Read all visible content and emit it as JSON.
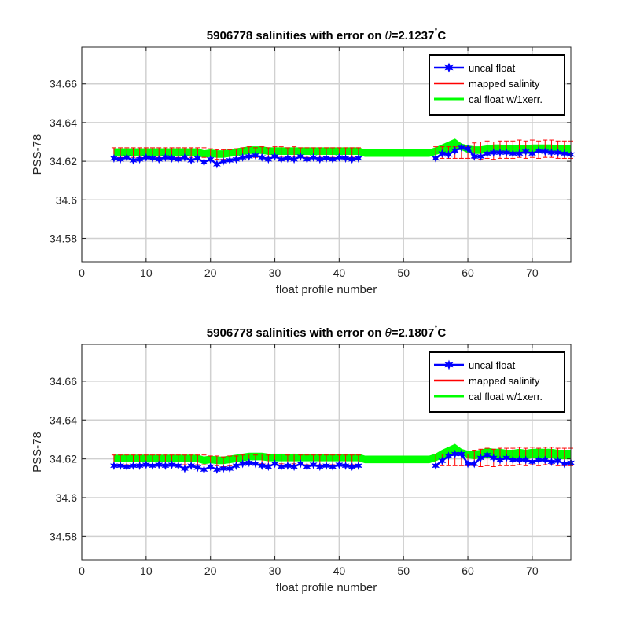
{
  "chart_data": [
    {
      "type": "line",
      "title_prefix": "5906778 salinities with error on ",
      "title_symbol": "θ",
      "title_value": "=2.1237",
      "title_degree": "°",
      "title_unit": "C",
      "xlabel": "float profile number",
      "ylabel": "PSS-78",
      "xlim": [
        0,
        76
      ],
      "ylim": [
        34.568,
        34.679
      ],
      "xticks": [
        0,
        10,
        20,
        30,
        40,
        50,
        60,
        70
      ],
      "yticks": [
        34.58,
        34.6,
        34.62,
        34.64,
        34.66
      ],
      "ytick_labels": [
        "34.58",
        "34.6",
        "34.62",
        "34.64",
        "34.66"
      ],
      "grid": true,
      "legend_position": "top-right",
      "legend": [
        "uncal float",
        "mapped salinity",
        "cal float w/1xerr."
      ],
      "colors": {
        "uncal": "#0000ff",
        "mapped": "#ff0000",
        "cal": "#00ff00"
      },
      "x": [
        5,
        6,
        7,
        8,
        9,
        10,
        11,
        12,
        13,
        14,
        15,
        16,
        17,
        18,
        19,
        20,
        21,
        22,
        23,
        24,
        25,
        26,
        27,
        28,
        29,
        30,
        31,
        32,
        33,
        34,
        35,
        36,
        37,
        38,
        39,
        40,
        41,
        42,
        43,
        55,
        56,
        57,
        58,
        59,
        60,
        61,
        62,
        63,
        64,
        65,
        66,
        67,
        68,
        69,
        70,
        71,
        72,
        73,
        74,
        75,
        76
      ],
      "series": [
        {
          "name": "uncal float",
          "values": [
            34.6215,
            34.621,
            34.622,
            34.6205,
            34.621,
            34.622,
            34.6215,
            34.621,
            34.622,
            34.6215,
            34.621,
            34.622,
            34.6205,
            34.6215,
            34.6195,
            34.621,
            34.6185,
            34.62,
            34.6205,
            34.621,
            34.622,
            34.6225,
            34.623,
            34.622,
            34.621,
            34.6225,
            34.621,
            34.6215,
            34.621,
            34.6225,
            34.621,
            34.622,
            34.621,
            34.6215,
            34.621,
            34.622,
            34.6215,
            34.621,
            34.6215,
            34.6215,
            34.624,
            34.6235,
            34.6255,
            34.627,
            34.6265,
            34.6225,
            34.6225,
            34.624,
            34.6245,
            34.6245,
            34.6245,
            34.624,
            34.624,
            34.625,
            34.624,
            34.6255,
            34.625,
            34.6245,
            34.6245,
            34.624,
            34.6235
          ]
        },
        {
          "name": "mapped salinity",
          "values": [
            34.6245,
            34.6245,
            34.6245,
            34.6245,
            34.6245,
            34.6245,
            34.6245,
            34.6245,
            34.6245,
            34.6245,
            34.6245,
            34.6245,
            34.6245,
            34.6245,
            34.6245,
            34.624,
            34.6235,
            34.6235,
            34.6235,
            34.624,
            34.6245,
            34.625,
            34.6245,
            34.625,
            34.6245,
            34.625,
            34.625,
            34.6245,
            34.625,
            34.6245,
            34.6245,
            34.6245,
            34.6245,
            34.6245,
            34.6245,
            34.6245,
            34.6245,
            34.6245,
            34.6245,
            34.6245,
            34.6245,
            34.6245,
            34.6245,
            34.6245,
            34.6245,
            34.6255,
            34.6255,
            34.626,
            34.6255,
            34.626,
            34.626,
            34.626,
            34.6265,
            34.626,
            34.6265,
            34.626,
            34.6265,
            34.6265,
            34.626,
            34.626,
            34.626
          ],
          "errors": [
            0.0025,
            0.0025,
            0.0025,
            0.0025,
            0.0025,
            0.0025,
            0.0025,
            0.0025,
            0.0025,
            0.0025,
            0.0025,
            0.0025,
            0.0025,
            0.0025,
            0.0025,
            0.0025,
            0.0025,
            0.0025,
            0.0025,
            0.0025,
            0.0025,
            0.0025,
            0.0025,
            0.0025,
            0.0025,
            0.0025,
            0.0025,
            0.0025,
            0.0025,
            0.0025,
            0.0025,
            0.0025,
            0.0025,
            0.0025,
            0.0025,
            0.0025,
            0.0025,
            0.0025,
            0.0025,
            0.003,
            0.003,
            0.003,
            0.003,
            0.003,
            0.003,
            0.004,
            0.0045,
            0.0045,
            0.0045,
            0.0045,
            0.0045,
            0.0045,
            0.0045,
            0.0045,
            0.0045,
            0.0045,
            0.0045,
            0.0045,
            0.0045,
            0.0045,
            0.0045
          ]
        },
        {
          "name": "cal float w/1xerr.",
          "x": [
            5,
            6,
            7,
            8,
            9,
            10,
            11,
            12,
            13,
            14,
            15,
            16,
            17,
            18,
            19,
            20,
            21,
            22,
            23,
            24,
            25,
            26,
            27,
            28,
            29,
            30,
            31,
            32,
            33,
            34,
            35,
            36,
            37,
            38,
            39,
            40,
            41,
            42,
            43,
            44,
            45,
            46,
            47,
            48,
            49,
            50,
            51,
            52,
            53,
            54,
            55,
            56,
            57,
            58,
            59,
            60,
            61,
            62,
            63,
            64,
            65,
            66,
            67,
            68,
            69,
            70,
            71,
            72,
            73,
            74,
            75,
            76
          ],
          "lower": [
            34.623,
            34.623,
            34.623,
            34.623,
            34.623,
            34.623,
            34.623,
            34.623,
            34.623,
            34.623,
            34.623,
            34.623,
            34.623,
            34.623,
            34.622,
            34.6225,
            34.622,
            34.622,
            34.6225,
            34.623,
            34.6235,
            34.624,
            34.624,
            34.624,
            34.6235,
            34.6235,
            34.6235,
            34.6235,
            34.6235,
            34.6235,
            34.6235,
            34.6235,
            34.6235,
            34.6235,
            34.6235,
            34.6235,
            34.6235,
            34.6235,
            34.6235,
            34.6225,
            34.6225,
            34.6225,
            34.6225,
            34.6225,
            34.6225,
            34.6225,
            34.6225,
            34.6225,
            34.6225,
            34.6225,
            34.6235,
            34.6245,
            34.6245,
            34.626,
            34.626,
            34.6245,
            34.624,
            34.624,
            34.6245,
            34.6245,
            34.6245,
            34.624,
            34.624,
            34.6245,
            34.624,
            34.6245,
            34.6245,
            34.6245,
            34.6245,
            34.624,
            34.624,
            34.624
          ],
          "upper": [
            34.6265,
            34.6265,
            34.6265,
            34.6265,
            34.6265,
            34.6265,
            34.6265,
            34.6265,
            34.6265,
            34.6265,
            34.6265,
            34.6265,
            34.6265,
            34.6265,
            34.6255,
            34.626,
            34.6255,
            34.6255,
            34.626,
            34.6265,
            34.627,
            34.6275,
            34.6275,
            34.6275,
            34.627,
            34.627,
            34.627,
            34.627,
            34.627,
            34.627,
            34.627,
            34.627,
            34.627,
            34.627,
            34.627,
            34.627,
            34.627,
            34.627,
            34.627,
            34.626,
            34.626,
            34.626,
            34.626,
            34.626,
            34.626,
            34.626,
            34.626,
            34.626,
            34.626,
            34.626,
            34.627,
            34.6285,
            34.63,
            34.6315,
            34.629,
            34.628,
            34.6275,
            34.6275,
            34.628,
            34.6285,
            34.6285,
            34.628,
            34.628,
            34.6285,
            34.628,
            34.6285,
            34.6285,
            34.6285,
            34.6285,
            34.628,
            34.628,
            34.628
          ]
        }
      ]
    },
    {
      "type": "line",
      "title_prefix": "5906778 salinities with error on ",
      "title_symbol": "θ",
      "title_value": "=2.1807",
      "title_degree": "°",
      "title_unit": "C",
      "xlabel": "float profile number",
      "ylabel": "PSS-78",
      "xlim": [
        0,
        76
      ],
      "ylim": [
        34.568,
        34.679
      ],
      "xticks": [
        0,
        10,
        20,
        30,
        40,
        50,
        60,
        70
      ],
      "yticks": [
        34.58,
        34.6,
        34.62,
        34.64,
        34.66
      ],
      "ytick_labels": [
        "34.58",
        "34.6",
        "34.62",
        "34.64",
        "34.66"
      ],
      "grid": true,
      "legend_position": "top-right",
      "legend": [
        "uncal float",
        "mapped salinity",
        "cal float w/1xerr."
      ],
      "colors": {
        "uncal": "#0000ff",
        "mapped": "#ff0000",
        "cal": "#00ff00"
      },
      "x": [
        5,
        6,
        7,
        8,
        9,
        10,
        11,
        12,
        13,
        14,
        15,
        16,
        17,
        18,
        19,
        20,
        21,
        22,
        23,
        24,
        25,
        26,
        27,
        28,
        29,
        30,
        31,
        32,
        33,
        34,
        35,
        36,
        37,
        38,
        39,
        40,
        41,
        42,
        43,
        55,
        56,
        57,
        58,
        59,
        60,
        61,
        62,
        63,
        64,
        65,
        66,
        67,
        68,
        69,
        70,
        71,
        72,
        73,
        74,
        75,
        76
      ],
      "series": [
        {
          "name": "uncal float",
          "values": [
            34.6165,
            34.6165,
            34.616,
            34.6165,
            34.6165,
            34.617,
            34.6165,
            34.617,
            34.6165,
            34.617,
            34.6165,
            34.615,
            34.6165,
            34.6155,
            34.6145,
            34.616,
            34.6145,
            34.615,
            34.615,
            34.6165,
            34.6175,
            34.618,
            34.6175,
            34.6165,
            34.616,
            34.6175,
            34.616,
            34.6165,
            34.616,
            34.6175,
            34.616,
            34.617,
            34.616,
            34.6165,
            34.616,
            34.617,
            34.6165,
            34.616,
            34.6165,
            34.6165,
            34.619,
            34.6215,
            34.6225,
            34.6225,
            34.6175,
            34.6175,
            34.6205,
            34.622,
            34.6205,
            34.6195,
            34.6205,
            34.6195,
            34.6195,
            34.6195,
            34.6185,
            34.6195,
            34.6195,
            34.6185,
            34.619,
            34.6175,
            34.618
          ]
        },
        {
          "name": "mapped salinity",
          "values": [
            34.6195,
            34.6195,
            34.6195,
            34.6195,
            34.6195,
            34.6195,
            34.6195,
            34.6195,
            34.6195,
            34.6195,
            34.6195,
            34.6195,
            34.6195,
            34.6195,
            34.6195,
            34.619,
            34.619,
            34.6185,
            34.619,
            34.619,
            34.6195,
            34.62,
            34.6195,
            34.62,
            34.6195,
            34.62,
            34.62,
            34.6195,
            34.62,
            34.6195,
            34.6195,
            34.6195,
            34.6195,
            34.6195,
            34.6195,
            34.6195,
            34.6195,
            34.6195,
            34.6195,
            34.6195,
            34.6195,
            34.6195,
            34.6195,
            34.6195,
            34.6195,
            34.6205,
            34.6205,
            34.621,
            34.6205,
            34.621,
            34.621,
            34.621,
            34.6215,
            34.621,
            34.6215,
            34.621,
            34.6215,
            34.6215,
            34.621,
            34.621,
            34.621
          ],
          "errors": [
            0.0025,
            0.0025,
            0.0025,
            0.0025,
            0.0025,
            0.0025,
            0.0025,
            0.0025,
            0.0025,
            0.0025,
            0.0025,
            0.0025,
            0.0025,
            0.0025,
            0.0025,
            0.0025,
            0.0025,
            0.0025,
            0.0025,
            0.0025,
            0.0025,
            0.0025,
            0.0025,
            0.0025,
            0.0025,
            0.0025,
            0.0025,
            0.0025,
            0.0025,
            0.0025,
            0.0025,
            0.0025,
            0.0025,
            0.0025,
            0.0025,
            0.0025,
            0.0025,
            0.0025,
            0.0025,
            0.003,
            0.003,
            0.003,
            0.003,
            0.003,
            0.003,
            0.004,
            0.0045,
            0.0045,
            0.0045,
            0.0045,
            0.0045,
            0.0045,
            0.0045,
            0.0045,
            0.0045,
            0.0045,
            0.0045,
            0.0045,
            0.0045,
            0.0045,
            0.0045
          ]
        },
        {
          "name": "cal float w/1xerr.",
          "x": [
            5,
            6,
            7,
            8,
            9,
            10,
            11,
            12,
            13,
            14,
            15,
            16,
            17,
            18,
            19,
            20,
            21,
            22,
            23,
            24,
            25,
            26,
            27,
            28,
            29,
            30,
            31,
            32,
            33,
            34,
            35,
            36,
            37,
            38,
            39,
            40,
            41,
            42,
            43,
            44,
            45,
            46,
            47,
            48,
            49,
            50,
            51,
            52,
            53,
            54,
            55,
            56,
            57,
            58,
            59,
            60,
            61,
            62,
            63,
            64,
            65,
            66,
            67,
            68,
            69,
            70,
            71,
            72,
            73,
            74,
            75,
            76
          ],
          "lower": [
            34.6185,
            34.6185,
            34.6185,
            34.6185,
            34.6185,
            34.6185,
            34.6185,
            34.6185,
            34.6185,
            34.6185,
            34.6185,
            34.6185,
            34.6185,
            34.6185,
            34.6175,
            34.618,
            34.6175,
            34.6175,
            34.618,
            34.6185,
            34.619,
            34.6195,
            34.6195,
            34.6195,
            34.619,
            34.619,
            34.619,
            34.619,
            34.619,
            34.619,
            34.619,
            34.619,
            34.619,
            34.619,
            34.619,
            34.619,
            34.619,
            34.619,
            34.619,
            34.618,
            34.618,
            34.618,
            34.618,
            34.618,
            34.618,
            34.618,
            34.618,
            34.618,
            34.618,
            34.618,
            34.619,
            34.6205,
            34.6215,
            34.6225,
            34.6225,
            34.6205,
            34.62,
            34.6205,
            34.6205,
            34.6205,
            34.6205,
            34.62,
            34.62,
            34.6205,
            34.62,
            34.6205,
            34.6205,
            34.6205,
            34.6205,
            34.62,
            34.62,
            34.62
          ],
          "upper": [
            34.622,
            34.622,
            34.622,
            34.622,
            34.622,
            34.622,
            34.622,
            34.622,
            34.622,
            34.622,
            34.622,
            34.622,
            34.622,
            34.622,
            34.621,
            34.6215,
            34.621,
            34.621,
            34.6215,
            34.622,
            34.6225,
            34.623,
            34.623,
            34.623,
            34.6225,
            34.6225,
            34.6225,
            34.6225,
            34.6225,
            34.6225,
            34.6225,
            34.6225,
            34.6225,
            34.6225,
            34.6225,
            34.6225,
            34.6225,
            34.6225,
            34.6225,
            34.6215,
            34.6215,
            34.6215,
            34.6215,
            34.6215,
            34.6215,
            34.6215,
            34.6215,
            34.6215,
            34.6215,
            34.6215,
            34.6225,
            34.6245,
            34.626,
            34.6275,
            34.625,
            34.624,
            34.624,
            34.6245,
            34.6255,
            34.625,
            34.625,
            34.6245,
            34.6245,
            34.625,
            34.6245,
            34.625,
            34.625,
            34.625,
            34.625,
            34.6245,
            34.6245,
            34.6245
          ]
        }
      ]
    }
  ]
}
